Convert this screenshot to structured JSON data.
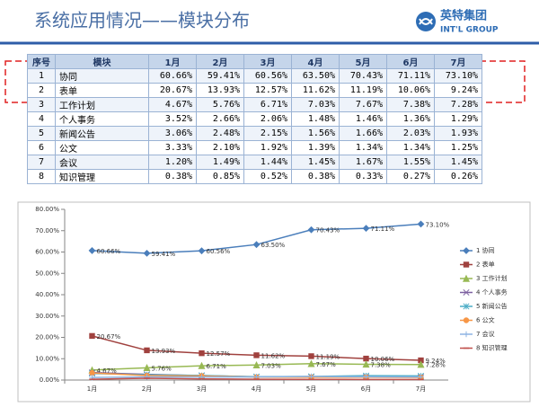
{
  "header": {
    "title": "系统应用情况——模块分布",
    "logo_name": "英特集团",
    "logo_sub": "INT'L GROUP"
  },
  "table": {
    "header": [
      "序号",
      "模块",
      "1月",
      "2月",
      "3月",
      "4月",
      "5月",
      "6月",
      "7月"
    ],
    "rows": [
      [
        "1",
        "协同",
        "60.66%",
        "59.41%",
        "60.56%",
        "63.50%",
        "70.43%",
        "71.11%",
        "73.10%"
      ],
      [
        "2",
        "表单",
        "20.67%",
        "13.93%",
        "12.57%",
        "11.62%",
        "11.19%",
        "10.06%",
        "9.24%"
      ],
      [
        "3",
        "工作计划",
        "4.67%",
        "5.76%",
        "6.71%",
        "7.03%",
        "7.67%",
        "7.38%",
        "7.28%"
      ],
      [
        "4",
        "个人事务",
        "3.52%",
        "2.66%",
        "2.06%",
        "1.48%",
        "1.46%",
        "1.36%",
        "1.29%"
      ],
      [
        "5",
        "新闻公告",
        "3.06%",
        "2.48%",
        "2.15%",
        "1.56%",
        "1.66%",
        "2.03%",
        "1.93%"
      ],
      [
        "6",
        "公文",
        "3.33%",
        "2.10%",
        "1.92%",
        "1.39%",
        "1.34%",
        "1.34%",
        "1.25%"
      ],
      [
        "7",
        "会议",
        "1.20%",
        "1.49%",
        "1.44%",
        "1.45%",
        "1.67%",
        "1.55%",
        "1.45%"
      ],
      [
        "8",
        "知识管理",
        "0.38%",
        "0.85%",
        "0.52%",
        "0.38%",
        "0.33%",
        "0.27%",
        "0.26%"
      ]
    ]
  },
  "chart_data": {
    "type": "line",
    "categories": [
      "1月",
      "2月",
      "3月",
      "4月",
      "5月",
      "6月",
      "7月"
    ],
    "ylim": [
      0,
      80
    ],
    "yticks": [
      {
        "value": 0,
        "label": "0.00%"
      },
      {
        "value": 10,
        "label": "10.00%"
      },
      {
        "value": 20,
        "label": "20.00%"
      },
      {
        "value": 30,
        "label": "30.00%"
      },
      {
        "value": 40,
        "label": "40.00%"
      },
      {
        "value": 50,
        "label": "50.00%"
      },
      {
        "value": 60,
        "label": "60.00%"
      },
      {
        "value": 70,
        "label": "70.00%"
      },
      {
        "value": 80,
        "label": "80.00%"
      }
    ],
    "grid": false,
    "legend": "right",
    "series": [
      {
        "name": "1 协同",
        "color": "#4a7ebb",
        "marker": "diamond",
        "values": [
          60.66,
          59.41,
          60.56,
          63.5,
          70.43,
          71.11,
          73.1
        ],
        "value_labels": [
          "60.66%",
          "59.41%",
          "60.56%",
          "63.50%",
          "70.43%",
          "71.11%",
          "73.10%"
        ]
      },
      {
        "name": "2 表单",
        "color": "#a0413e",
        "marker": "square",
        "values": [
          20.67,
          13.93,
          12.57,
          11.62,
          11.19,
          10.06,
          9.24
        ],
        "value_labels": [
          "20.67%",
          "13.93%",
          "12.57%",
          "11.62%",
          "11.19%",
          "10.06%",
          "9.24%"
        ]
      },
      {
        "name": "3 工作计划",
        "color": "#98b954",
        "marker": "triangle",
        "values": [
          4.67,
          5.76,
          6.71,
          7.03,
          7.67,
          7.38,
          7.28
        ],
        "value_labels": [
          "4.67%",
          "5.76%",
          "6.71%",
          "7.03%",
          "7.67%",
          "7.38%",
          "7.28%"
        ]
      },
      {
        "name": "4 个人事务",
        "color": "#7d60a0",
        "marker": "x",
        "values": [
          3.52,
          2.66,
          2.06,
          1.48,
          1.46,
          1.36,
          1.29
        ]
      },
      {
        "name": "5 新闻公告",
        "color": "#4bacc6",
        "marker": "star",
        "values": [
          3.06,
          2.48,
          2.15,
          1.56,
          1.66,
          2.03,
          1.93
        ]
      },
      {
        "name": "6 公文",
        "color": "#f79646",
        "marker": "circle",
        "values": [
          3.33,
          2.1,
          1.92,
          1.39,
          1.34,
          1.34,
          1.25
        ]
      },
      {
        "name": "7 会议",
        "color": "#8db3e2",
        "marker": "plus",
        "values": [
          1.2,
          1.49,
          1.44,
          1.45,
          1.67,
          1.55,
          1.45
        ]
      },
      {
        "name": "8 知识管理",
        "color": "#c0504d",
        "marker": "dash",
        "values": [
          0.38,
          0.85,
          0.52,
          0.38,
          0.33,
          0.27,
          0.26
        ]
      }
    ]
  }
}
